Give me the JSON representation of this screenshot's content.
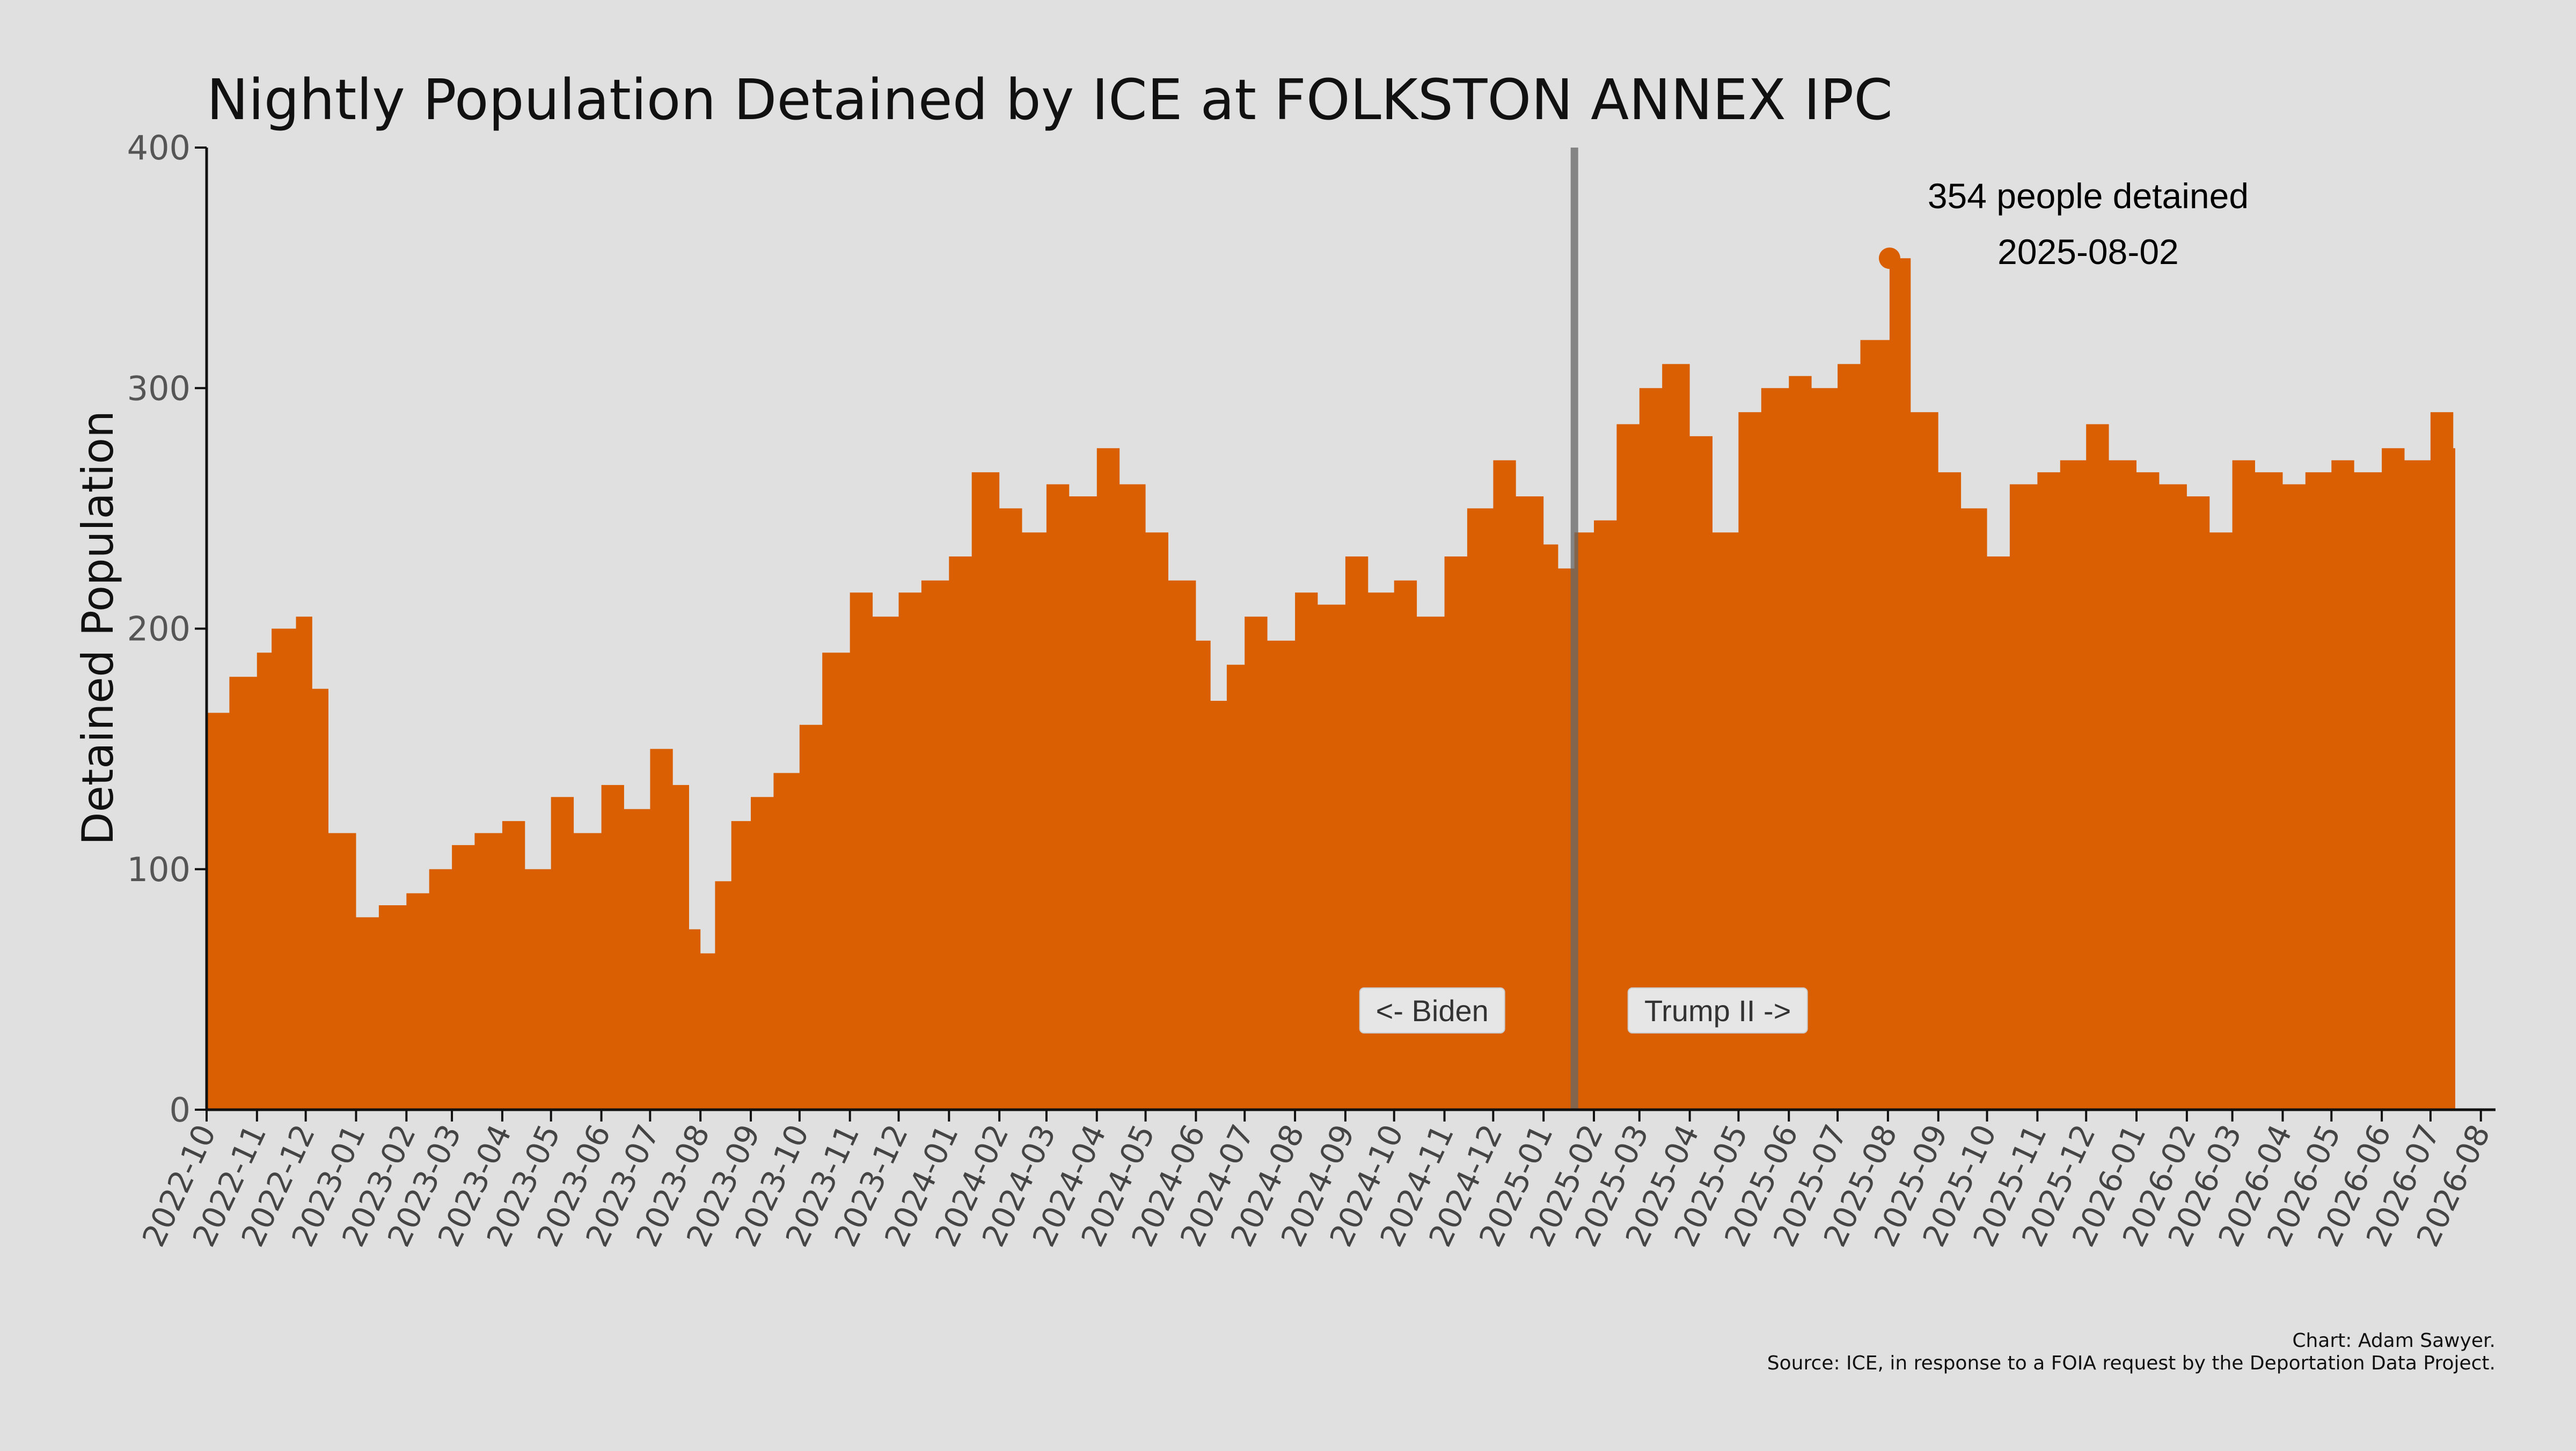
{
  "chart_data": {
    "type": "area",
    "title": "Nightly Population Detained by ICE at FOLKSTON ANNEX IPC",
    "ylabel": "Detained Population",
    "xlabel": "",
    "ylim": [
      0,
      400
    ],
    "yticks": [
      0,
      100,
      200,
      300,
      400
    ],
    "xticks": [
      "2022-10",
      "2022-11",
      "2022-12",
      "2023-01",
      "2023-02",
      "2023-03",
      "2023-04",
      "2023-05",
      "2023-06",
      "2023-07",
      "2023-08",
      "2023-09",
      "2023-10",
      "2023-11",
      "2023-12",
      "2024-01",
      "2024-02",
      "2024-03",
      "2024-04",
      "2024-05",
      "2024-06",
      "2024-07",
      "2024-08",
      "2024-09",
      "2024-10",
      "2024-11",
      "2024-12",
      "2025-01",
      "2025-02",
      "2025-03",
      "2025-04",
      "2025-05",
      "2025-06",
      "2025-07",
      "2025-08",
      "2025-09",
      "2025-10",
      "2025-11",
      "2025-12",
      "2026-01",
      "2026-02",
      "2026-03",
      "2026-04",
      "2026-05",
      "2026-06",
      "2026-07",
      "2026-08"
    ],
    "grid": false,
    "series": [
      {
        "color": "#d95f02",
        "x": [
          "2022-10-01",
          "2022-10-15",
          "2022-11-01",
          "2022-11-10",
          "2022-11-25",
          "2022-12-05",
          "2022-12-15",
          "2023-01-01",
          "2023-01-15",
          "2023-02-01",
          "2023-02-15",
          "2023-03-01",
          "2023-03-15",
          "2023-04-01",
          "2023-04-15",
          "2023-05-01",
          "2023-05-15",
          "2023-06-01",
          "2023-06-15",
          "2023-07-01",
          "2023-07-15",
          "2023-07-25",
          "2023-08-01",
          "2023-08-10",
          "2023-08-20",
          "2023-09-01",
          "2023-09-15",
          "2023-10-01",
          "2023-10-15",
          "2023-11-01",
          "2023-11-15",
          "2023-12-01",
          "2023-12-15",
          "2024-01-01",
          "2024-01-15",
          "2024-02-01",
          "2024-02-15",
          "2024-03-01",
          "2024-03-15",
          "2024-04-01",
          "2024-04-15",
          "2024-05-01",
          "2024-05-15",
          "2024-06-01",
          "2024-06-10",
          "2024-06-20",
          "2024-07-01",
          "2024-07-15",
          "2024-08-01",
          "2024-08-15",
          "2024-09-01",
          "2024-09-15",
          "2024-10-01",
          "2024-10-15",
          "2024-11-01",
          "2024-11-15",
          "2024-12-01",
          "2024-12-15",
          "2025-01-01",
          "2025-01-10",
          "2025-01-20",
          "2025-02-01",
          "2025-02-15",
          "2025-03-01",
          "2025-03-15",
          "2025-04-01",
          "2025-04-15",
          "2025-05-01",
          "2025-05-15",
          "2025-06-01",
          "2025-06-15",
          "2025-07-01",
          "2025-07-15",
          "2025-08-02",
          "2025-08-15",
          "2025-09-01",
          "2025-09-15",
          "2025-10-01",
          "2025-10-15",
          "2025-11-01",
          "2025-11-15",
          "2025-12-01",
          "2025-12-15",
          "2026-01-01",
          "2026-01-15",
          "2026-02-01",
          "2026-02-15",
          "2026-03-01",
          "2026-03-15",
          "2026-04-01",
          "2026-04-15",
          "2026-05-01",
          "2026-05-15",
          "2026-06-01",
          "2026-06-15",
          "2026-07-01",
          "2026-07-15",
          "2026-08-01"
        ],
        "y": [
          165,
          180,
          190,
          200,
          205,
          175,
          115,
          80,
          85,
          90,
          100,
          110,
          115,
          120,
          100,
          130,
          115,
          135,
          125,
          150,
          135,
          75,
          65,
          95,
          120,
          130,
          140,
          160,
          190,
          215,
          205,
          215,
          220,
          230,
          265,
          250,
          240,
          260,
          255,
          275,
          260,
          240,
          220,
          195,
          170,
          185,
          205,
          195,
          215,
          210,
          230,
          215,
          220,
          205,
          230,
          250,
          270,
          255,
          235,
          225,
          240,
          245,
          285,
          300,
          310,
          280,
          240,
          290,
          300,
          305,
          300,
          310,
          320,
          354,
          290,
          265,
          250,
          230,
          260,
          265,
          270,
          285,
          270,
          265,
          260,
          255,
          240,
          270,
          265,
          260,
          265,
          270,
          265,
          275,
          270,
          290,
          275,
          275
        ]
      }
    ],
    "vline": {
      "x": "2025-01-20"
    },
    "era_labels": {
      "left": "<- Biden",
      "right": "Trump II ->"
    },
    "peak": {
      "x": "2025-08-02",
      "y": 354,
      "label_line1": "354 people detained",
      "label_line2": "2025-08-02"
    },
    "credits": {
      "line1": "Chart: Adam Sawyer.",
      "line2": "Source: ICE, in response to a FOIA request by the Deportation Data Project."
    }
  }
}
